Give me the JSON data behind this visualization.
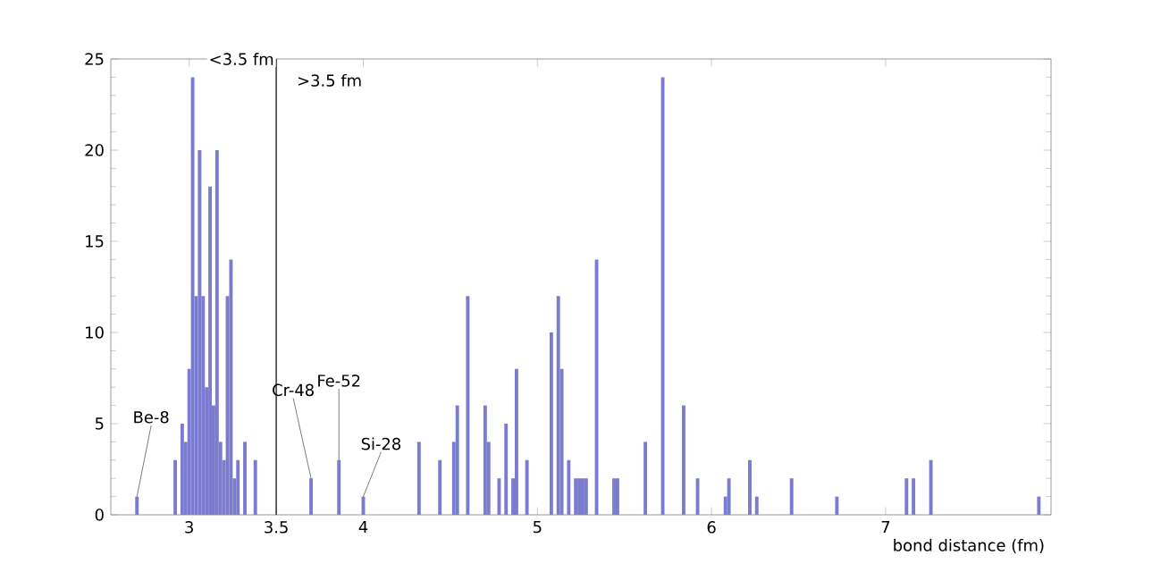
{
  "chart_data": {
    "type": "histogram",
    "xlabel": "bond distance (fm)",
    "bins": [
      2.55,
      2.57,
      2.59,
      2.61,
      2.63,
      2.65,
      2.67,
      2.69,
      2.71,
      2.73,
      2.75,
      2.77,
      2.79,
      2.81,
      2.83,
      2.85,
      2.87,
      2.89,
      2.91,
      2.93,
      2.95,
      2.97,
      2.99,
      3.01,
      3.03,
      3.05,
      3.07,
      3.09,
      3.11,
      3.13,
      3.15,
      3.17,
      3.19,
      3.21,
      3.23,
      3.25,
      3.27,
      3.29,
      3.31,
      3.33,
      3.35,
      3.37,
      3.39,
      3.41,
      3.43,
      3.45,
      3.47,
      3.49,
      3.51,
      3.53,
      3.55,
      3.57,
      3.59,
      3.61,
      3.63,
      3.65,
      3.67,
      3.69,
      3.71,
      3.73,
      3.75,
      3.77,
      3.79,
      3.81,
      3.83,
      3.85,
      3.87,
      3.89,
      3.91,
      3.93,
      3.95,
      3.97,
      3.99,
      4.01,
      4.03,
      4.05,
      4.07,
      4.09,
      4.11,
      4.13,
      4.15,
      4.17,
      4.19,
      4.21,
      4.23,
      4.25,
      4.27,
      4.29,
      4.31,
      4.33,
      4.35,
      4.37,
      4.39,
      4.41,
      4.43,
      4.45,
      4.47,
      4.49,
      4.51,
      4.53,
      4.55,
      4.57,
      4.59,
      4.61,
      4.63,
      4.65,
      4.67,
      4.69,
      4.71,
      4.73,
      4.75,
      4.77,
      4.79,
      4.81,
      4.83,
      4.85,
      4.87,
      4.89,
      4.91,
      4.93,
      4.95,
      4.97,
      4.99,
      5.01,
      5.03,
      5.05,
      5.07,
      5.09,
      5.11,
      5.13,
      5.15,
      5.17,
      5.19,
      5.21,
      5.23,
      5.25,
      5.27,
      5.29,
      5.31,
      5.33,
      5.35,
      5.37,
      5.39,
      5.41,
      5.43,
      5.45,
      5.47,
      5.49,
      5.51,
      5.53,
      5.55,
      5.57,
      5.59,
      5.61,
      5.63,
      5.65,
      5.67,
      5.69,
      5.71,
      5.73,
      5.75,
      5.77,
      5.79,
      5.81,
      5.83,
      5.85,
      5.87,
      5.89,
      5.91,
      5.93,
      5.95,
      5.97,
      5.99,
      6.01,
      6.03,
      6.05,
      6.07,
      6.09,
      6.11,
      6.13,
      6.15,
      6.17,
      6.19,
      6.21,
      6.23,
      6.25,
      6.27,
      6.29,
      6.31,
      6.33,
      6.35,
      6.37,
      6.39,
      6.41,
      6.43,
      6.45,
      6.47,
      6.49,
      6.51,
      6.53,
      6.55,
      6.57,
      6.59,
      6.61,
      6.63,
      6.65,
      6.67,
      6.69,
      6.71,
      6.73,
      6.75,
      6.77,
      6.79,
      6.81,
      6.83,
      6.85,
      6.87,
      6.89,
      6.91,
      6.93,
      6.95,
      6.97,
      6.99,
      7.01,
      7.03,
      7.05,
      7.07,
      7.09,
      7.11,
      7.13,
      7.15,
      7.17,
      7.19,
      7.21,
      7.23,
      7.25,
      7.27,
      7.29,
      7.31,
      7.33,
      7.35,
      7.37,
      7.39,
      7.41,
      7.43,
      7.45,
      7.47,
      7.49,
      7.51,
      7.53,
      7.55,
      7.57,
      7.59,
      7.61,
      7.63,
      7.65,
      7.67,
      7.69,
      7.71,
      7.73,
      7.75,
      7.77,
      7.79,
      7.81,
      7.83,
      7.85,
      7.87,
      7.89,
      7.91,
      7.93,
      7.95
    ],
    "values": [
      0,
      0,
      0,
      0,
      0,
      0,
      0,
      1,
      0,
      0,
      0,
      0,
      0,
      0,
      0,
      0,
      0,
      0,
      3,
      0,
      5,
      4,
      8,
      24,
      12,
      20,
      12,
      7,
      18,
      6,
      20,
      4,
      3,
      12,
      14,
      2,
      3,
      0,
      4,
      0,
      0,
      3,
      0,
      0,
      0,
      0,
      0,
      0,
      0,
      0,
      0,
      0,
      0,
      0,
      0,
      0,
      0,
      2,
      0,
      0,
      0,
      0,
      0,
      0,
      0,
      3,
      0,
      0,
      0,
      0,
      0,
      0,
      1,
      0,
      0,
      0,
      0,
      0,
      0,
      0,
      0,
      0,
      0,
      0,
      0,
      0,
      0,
      0,
      4,
      0,
      0,
      0,
      0,
      0,
      3,
      0,
      0,
      0,
      4,
      6,
      0,
      0,
      12,
      0,
      0,
      0,
      0,
      6,
      4,
      0,
      0,
      2,
      0,
      5,
      0,
      2,
      8,
      0,
      0,
      3,
      0,
      0,
      0,
      0,
      0,
      0,
      10,
      0,
      12,
      8,
      0,
      3,
      0,
      2,
      2,
      2,
      2,
      0,
      0,
      14,
      0,
      0,
      0,
      0,
      2,
      2,
      0,
      0,
      0,
      0,
      0,
      0,
      0,
      4,
      0,
      0,
      0,
      0,
      24,
      0,
      0,
      0,
      0,
      0,
      6,
      0,
      0,
      0,
      2,
      0,
      0,
      0,
      0,
      0,
      0,
      0,
      1,
      2,
      0,
      0,
      0,
      0,
      0,
      3,
      0,
      1,
      0,
      0,
      0,
      0,
      0,
      0,
      0,
      0,
      0,
      2,
      0,
      0,
      0,
      0,
      0,
      0,
      0,
      0,
      0,
      0,
      0,
      0,
      1,
      0,
      0,
      0,
      0,
      0,
      0,
      0,
      0,
      0,
      0,
      0,
      0,
      0,
      0,
      0,
      0,
      0,
      0,
      0,
      2,
      0,
      2,
      0,
      0,
      0,
      0,
      3,
      0,
      0,
      0,
      0,
      0,
      0,
      0,
      0,
      0,
      0,
      0,
      0,
      0,
      0,
      0,
      0,
      0,
      0,
      0,
      0,
      0,
      0,
      0,
      0,
      0,
      0,
      0,
      0,
      0,
      0,
      1,
      0,
      0,
      0
    ],
    "color": "#7b7bd0",
    "xlim": [
      2.55,
      7.95
    ],
    "ylim": [
      0,
      25
    ],
    "xticks": [
      3,
      3.5,
      4,
      5,
      6,
      7
    ],
    "yticks": [
      0,
      5,
      10,
      15,
      20,
      25
    ],
    "ref_lines": [
      {
        "axis": "x",
        "value": 3.5,
        "color": "#000000"
      }
    ],
    "annotations": [
      "<3.5 fm",
      ">3.5 fm",
      {
        "text": "Be-8",
        "x": 2.7,
        "y": 1
      },
      {
        "text": "Cr-48",
        "x": 3.7,
        "y": 2
      },
      {
        "text": "Fe-52",
        "x": 3.86,
        "y": 3
      },
      {
        "text": "Si-28",
        "x": 4.0,
        "y": 1
      }
    ]
  }
}
